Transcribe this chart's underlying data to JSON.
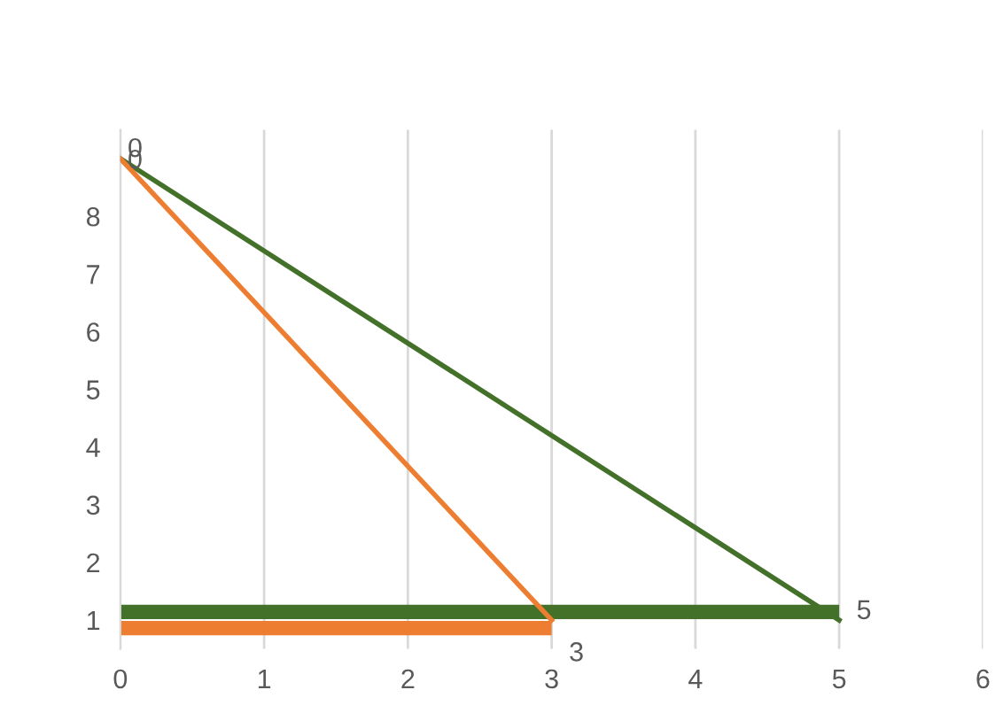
{
  "chart_data": {
    "type": "bar",
    "orientation": "horizontal",
    "categories": [
      null,
      "8",
      "7",
      "6",
      "5",
      "4",
      "3",
      "2",
      "1"
    ],
    "series": [
      {
        "color": "#43712a",
        "values": [
          null,
          null,
          null,
          null,
          null,
          null,
          null,
          null,
          5
        ],
        "value_labels": [
          null,
          null,
          null,
          null,
          null,
          null,
          null,
          null,
          "5"
        ]
      },
      {
        "color": "#ed7d31",
        "values": [
          null,
          null,
          null,
          null,
          null,
          null,
          null,
          null,
          3
        ],
        "value_labels": [
          null,
          null,
          null,
          null,
          null,
          null,
          null,
          null,
          "3"
        ]
      },
      {
        "type": "line",
        "color": "#43712a",
        "values": [
          0,
          null,
          null,
          null,
          null,
          null,
          null,
          null,
          5
        ],
        "value_labels": [
          "0",
          null,
          null,
          null,
          null,
          null,
          null,
          null,
          null
        ]
      },
      {
        "type": "line",
        "color": "#ed7d31",
        "values": [
          0,
          null,
          null,
          null,
          null,
          null,
          null,
          null,
          3
        ],
        "value_labels": [
          "0",
          null,
          null,
          null,
          null,
          null,
          null,
          null,
          null
        ]
      }
    ],
    "xlim": [
      0,
      6
    ],
    "xticks": [
      0,
      1,
      2,
      3,
      4,
      5,
      6
    ],
    "grid": "x"
  }
}
